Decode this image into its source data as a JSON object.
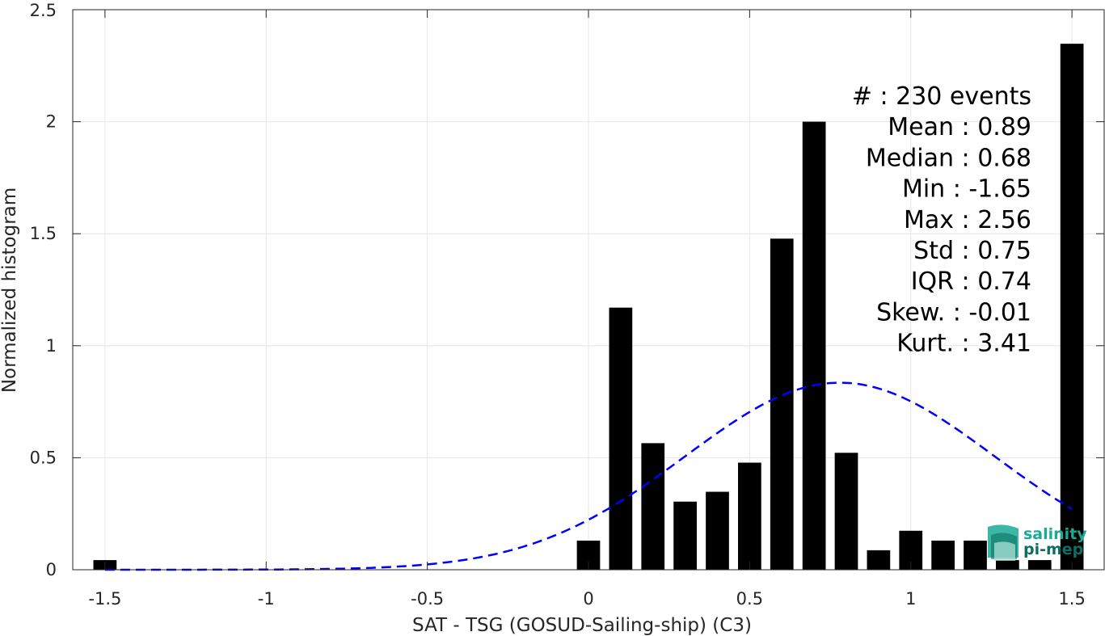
{
  "chart_data": {
    "type": "bar",
    "xlabel": "SAT - TSG (GOSUD-Sailing-ship) (C3)",
    "ylabel": "Normalized histogram",
    "xlim": [
      -1.6,
      1.6
    ],
    "ylim": [
      0,
      2.5
    ],
    "grid": true,
    "x_ticks": [
      {
        "value": -1.5,
        "label": "-1.5"
      },
      {
        "value": -1,
        "label": "-1"
      },
      {
        "value": -0.5,
        "label": "-0.5"
      },
      {
        "value": 0,
        "label": "0"
      },
      {
        "value": 0.5,
        "label": "0.5"
      },
      {
        "value": 1,
        "label": "1"
      },
      {
        "value": 1.5,
        "label": "1.5"
      }
    ],
    "y_ticks": [
      {
        "value": 0,
        "label": "0"
      },
      {
        "value": 0.5,
        "label": "0.5"
      },
      {
        "value": 1,
        "label": "1"
      },
      {
        "value": 1.5,
        "label": "1.5"
      },
      {
        "value": 2,
        "label": "2"
      },
      {
        "value": 2.5,
        "label": "2.5"
      }
    ],
    "bin_width": 0.1,
    "bars": [
      {
        "x": -1.5,
        "y": 0.043
      },
      {
        "x": 0.0,
        "y": 0.13
      },
      {
        "x": 0.1,
        "y": 1.17
      },
      {
        "x": 0.2,
        "y": 0.565
      },
      {
        "x": 0.3,
        "y": 0.304
      },
      {
        "x": 0.4,
        "y": 0.348
      },
      {
        "x": 0.5,
        "y": 0.478
      },
      {
        "x": 0.6,
        "y": 1.478
      },
      {
        "x": 0.7,
        "y": 2.0
      },
      {
        "x": 0.8,
        "y": 0.522
      },
      {
        "x": 0.9,
        "y": 0.087
      },
      {
        "x": 1.0,
        "y": 0.174
      },
      {
        "x": 1.1,
        "y": 0.13
      },
      {
        "x": 1.2,
        "y": 0.13
      },
      {
        "x": 1.3,
        "y": 0.043
      },
      {
        "x": 1.4,
        "y": 0.043
      },
      {
        "x": 1.5,
        "y": 2.348
      }
    ],
    "bar_color": "#000000",
    "fit_curve": {
      "style": "dashed",
      "color": "#0000ff",
      "mean": 0.78,
      "sigma": 0.48,
      "peak": 0.835,
      "x_range": [
        -1.5,
        1.5
      ]
    },
    "stats": [
      {
        "label": "#  : 230 events"
      },
      {
        "label": "Mean : 0.89"
      },
      {
        "label": "Median : 0.68"
      },
      {
        "label": "Min : -1.65"
      },
      {
        "label": "Max : 2.56"
      },
      {
        "label": "Std : 0.75"
      },
      {
        "label": "IQR : 0.74"
      },
      {
        "label": "Skew. : -0.01"
      },
      {
        "label": "Kurt. : 3.41"
      }
    ]
  },
  "logo": {
    "line1": "salinity",
    "line2": "pi-mep",
    "color": "#1aaa96",
    "color_dark": "#0e6f60"
  }
}
